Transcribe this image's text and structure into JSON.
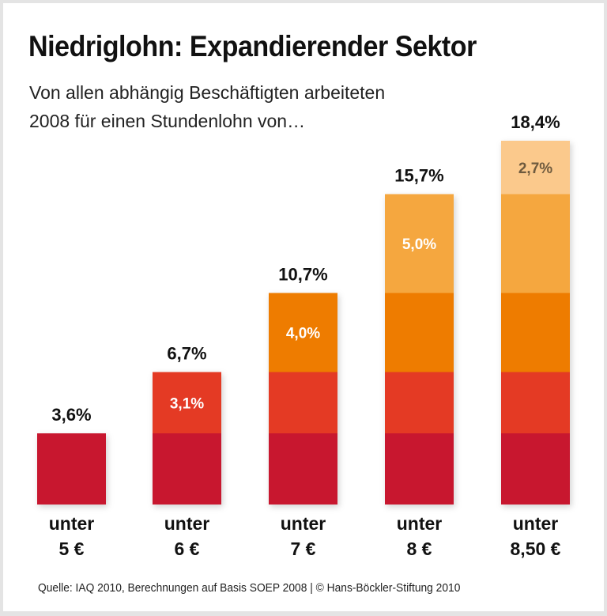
{
  "chart_data": {
    "type": "bar",
    "stacked": true,
    "title": "Niedriglohn: Expandierender Sektor",
    "subtitle": [
      "Von allen abhängig Beschäftigten arbeiteten",
      "2008 für einen Stundenlohn von…"
    ],
    "categories": [
      [
        "unter",
        "5 €"
      ],
      [
        "unter",
        "6 €"
      ],
      [
        "unter",
        "7 €"
      ],
      [
        "unter",
        "8 €"
      ],
      [
        "unter",
        "8,50 €"
      ]
    ],
    "totals": [
      3.6,
      6.7,
      10.7,
      15.7,
      18.4
    ],
    "total_labels": [
      "3,6%",
      "6,7%",
      "10,7%",
      "15,7%",
      "18,4%"
    ],
    "increments": [
      3.6,
      3.1,
      4.0,
      5.0,
      2.7
    ],
    "increment_labels": [
      "",
      "3,1%",
      "4,0%",
      "5,0%",
      "2,7%"
    ],
    "segment_colors": [
      "#c8172f",
      "#e43a24",
      "#ee7c00",
      "#f5a73f",
      "#fbc98c"
    ],
    "label_colors": [
      "#ffffff",
      "#ffffff",
      "#ffffff",
      "#ffffff",
      "#6e5a3e"
    ],
    "unit": "%",
    "ylim": [
      0,
      18.4
    ],
    "grid": false,
    "source": "Quelle: IAQ 2010, Berechnungen auf Basis SOEP 2008 | © Hans-Böckler-Stiftung 2010"
  }
}
